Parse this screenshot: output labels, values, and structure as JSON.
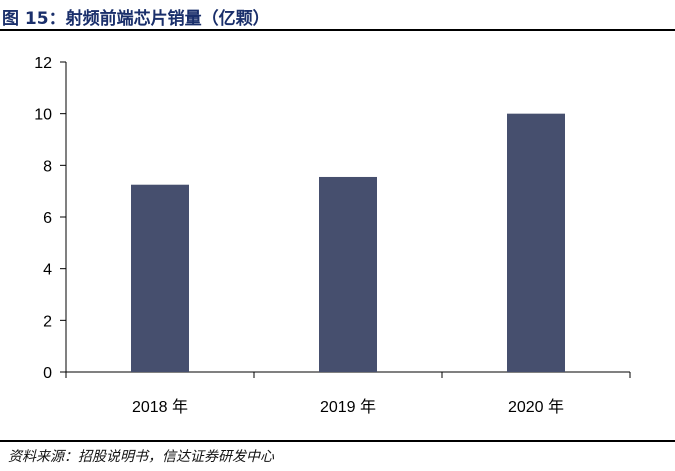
{
  "figure_title": "图 15：射频前端芯片销量（亿颗）",
  "source_note": "资料来源：招股说明书，信达证券研发中心",
  "colors": {
    "bar": "#464f6e",
    "axis": "#000000",
    "title": "#1a2f6b"
  },
  "chart_data": {
    "type": "bar",
    "title": "",
    "xlabel": "",
    "ylabel": "",
    "categories": [
      "2018 年",
      "2019 年",
      "2020 年"
    ],
    "values": [
      7.25,
      7.55,
      10.0
    ],
    "ylim": [
      0,
      12
    ],
    "yticks": [
      "0",
      "2",
      "4",
      "6",
      "8",
      "10",
      "12"
    ],
    "grid": false,
    "legend": "none"
  }
}
